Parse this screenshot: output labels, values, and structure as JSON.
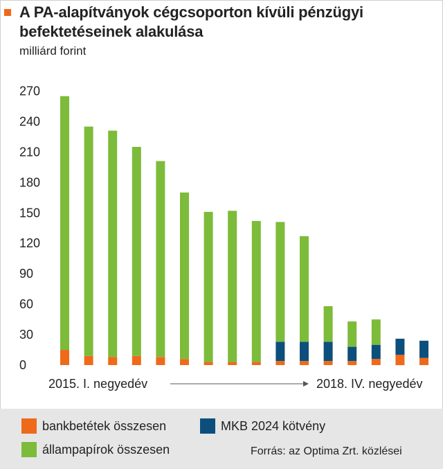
{
  "header": {
    "title": "A PA-alapítványok cégcsoporton kívüli pénzügyi befektetéseinek alakulása",
    "unit": "milliárd forint"
  },
  "colors": {
    "bank": "#ee6a1a",
    "state": "#7dbb3a",
    "mkb": "#0d4f7c",
    "marker": "#ee6a1a",
    "legend_bg": "#e6e6e6"
  },
  "axis": {
    "start_label": "2015. I. negyedév",
    "end_label": "2018. IV. negyedév"
  },
  "legend": {
    "bank": "bankbetétek összesen",
    "state": "állampapírok összesen",
    "mkb": "MKB 2024 kötvény"
  },
  "source": "Forrás: az Optima Zrt. közlései",
  "chart_data": {
    "type": "bar",
    "stacked": true,
    "categories": [
      "2015. I. negyedév",
      "",
      "",
      "",
      "",
      "",
      "",
      "",
      "",
      "",
      "",
      "",
      "",
      "",
      "",
      "2018. IV. negyedév"
    ],
    "yticks": [
      0,
      30,
      60,
      90,
      120,
      150,
      180,
      210,
      240,
      270
    ],
    "ylim": [
      0,
      275
    ],
    "grid": false,
    "series": [
      {
        "name": "bankbetétek összesen",
        "color": "#ee6a1a",
        "values": [
          15,
          9,
          8,
          9,
          8,
          6,
          3,
          3,
          3,
          4,
          4,
          4,
          4,
          6,
          10,
          7
        ]
      },
      {
        "name": "MKB 2024 kötvény",
        "color": "#0d4f7c",
        "values": [
          0,
          0,
          0,
          0,
          0,
          0,
          0,
          0,
          0,
          19,
          19,
          19,
          14,
          14,
          16,
          17
        ]
      },
      {
        "name": "állampapírok összesen",
        "color": "#7dbb3a",
        "values": [
          250,
          226,
          223,
          206,
          193,
          164,
          148,
          149,
          139,
          118,
          104,
          35,
          25,
          25,
          0,
          0
        ]
      }
    ]
  }
}
